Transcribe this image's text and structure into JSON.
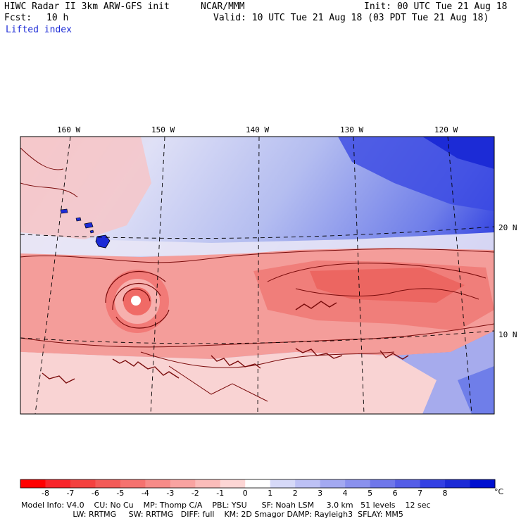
{
  "header": {
    "model": "HIWC Radar II 3km ARW-GFS init",
    "org": "NCAR/MMM",
    "init": "Init: 00 UTC Tue 21 Aug 18",
    "fcst_label": "Fcst:",
    "fcst_value": "10 h",
    "valid": "Valid: 10 UTC Tue 21 Aug 18 (03 PDT Tue 21 Aug 18)",
    "field": "Lifted index"
  },
  "map": {
    "lon_labels": [
      "160 W",
      "150 W",
      "140 W",
      "130 W",
      "120 W"
    ],
    "lat_labels": [
      "20 N",
      "10 N"
    ]
  },
  "colorbar": {
    "ticks": [
      "-8",
      "-7",
      "-6",
      "-5",
      "-4",
      "-3",
      "-2",
      "-1",
      "0",
      "1",
      "2",
      "3",
      "4",
      "5",
      "6",
      "7",
      "8"
    ],
    "unit": "°C",
    "colors": [
      "#ff0000",
      "#f8242a",
      "#f4413f",
      "#f35a57",
      "#f5726f",
      "#f78b88",
      "#f9a3a1",
      "#fbbcba",
      "#fdd6d5",
      "#ffffff",
      "#d6d9f8",
      "#bdc1f5",
      "#a3a9f1",
      "#8a91ee",
      "#6f77ea",
      "#545de7",
      "#3340e3",
      "#1c2bd6",
      "#0010d0"
    ]
  },
  "footer": {
    "line1": "Model Info: V4.0    CU: No Cu    MP: Thomp C/A    PBL: YSU      SF: Noah LSM     3.0 km   51 levels    12 sec",
    "line2": "                     LW: RRTMG     SW: RRTMG   DIFF: full    KM: 2D Smagor DAMP: Rayleigh3  SFLAY: MM5"
  }
}
